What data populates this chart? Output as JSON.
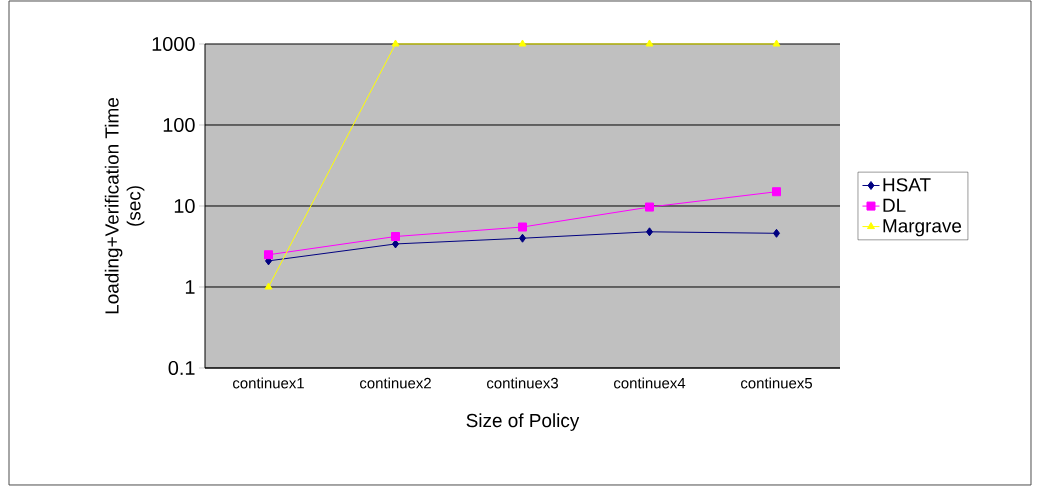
{
  "chart_data": {
    "type": "line",
    "xlabel": "Size of Policy",
    "ylabel": "Loading+Verification Time\n(sec)",
    "categories": [
      "continuex1",
      "continuex2",
      "continuex3",
      "continuex4",
      "continuex5"
    ],
    "series": [
      {
        "name": "HSAT",
        "color": "#000080",
        "marker": "diamond",
        "values": [
          2.1,
          3.4,
          4.0,
          4.8,
          4.6
        ]
      },
      {
        "name": "DL",
        "color": "#ff00ff",
        "marker": "square",
        "values": [
          2.5,
          4.2,
          5.5,
          9.7,
          15
        ]
      },
      {
        "name": "Margrave",
        "color": "#ffff00",
        "marker": "triangle",
        "values": [
          1,
          1000,
          1000,
          1000,
          1000
        ]
      }
    ],
    "log": "y",
    "ylim": [
      0.1,
      1000
    ],
    "yticks": [
      0.1,
      1,
      10,
      100,
      1000
    ],
    "grid": "y",
    "legend": "right"
  }
}
